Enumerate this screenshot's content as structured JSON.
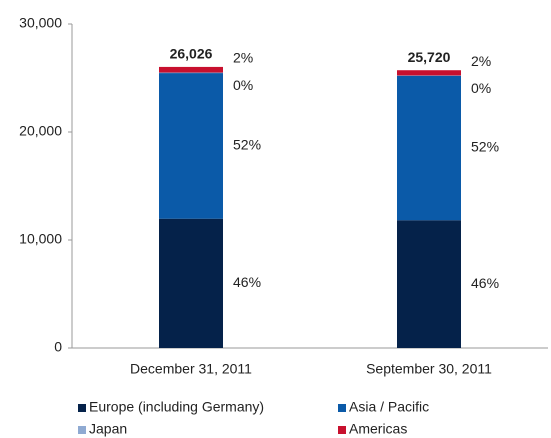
{
  "chart_data": {
    "type": "stacked_bar",
    "categories": [
      "December 31, 2011",
      "September 30, 2011"
    ],
    "series": [
      {
        "name": "Europe (including Germany)",
        "color": "#05224a",
        "values": [
          11972,
          11831
        ],
        "value_labels": [
          "46%",
          "46%"
        ]
      },
      {
        "name": "Asia / Pacific",
        "color": "#0b5aa8",
        "values": [
          13484,
          13374
        ],
        "value_labels": [
          "52%",
          "52%"
        ]
      },
      {
        "name": "Japan",
        "color": "#8faad2",
        "values": [
          50,
          30
        ],
        "value_labels": [
          "0%",
          "0%"
        ]
      },
      {
        "name": "Americas",
        "color": "#c8102e",
        "values": [
          520,
          485
        ],
        "value_labels": [
          "2%",
          "2%"
        ]
      }
    ],
    "totals": {
      "values": [
        26026,
        25720
      ],
      "value_labels": [
        "26,026",
        "25,720"
      ]
    },
    "ylim": [
      0,
      30000
    ],
    "yticks": [
      0,
      {
        "value": 10000,
        "label": "10,000"
      },
      {
        "value": 20000,
        "label": "20,000"
      },
      {
        "value": 30000,
        "label": "30,000"
      }
    ],
    "grid": false
  }
}
